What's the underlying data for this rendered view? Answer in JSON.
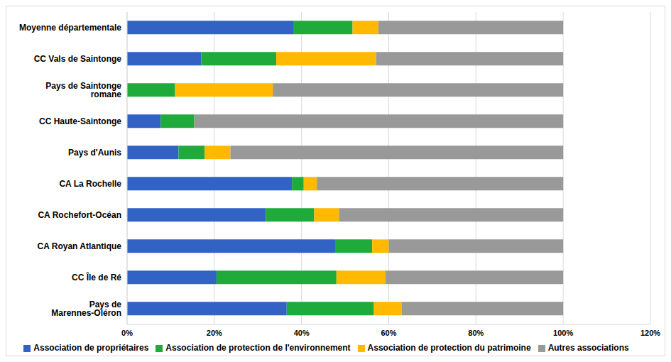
{
  "chart_data": {
    "type": "bar",
    "orientation": "horizontal",
    "stacked": true,
    "grid": true,
    "legend": "bottom",
    "categories": [
      "Moyenne départementale",
      "CC Vals de Saintonge",
      "Pays de Saintonge romane",
      "CC Haute-Saintonge",
      "Pays d'Aunis",
      "CA La Rochelle",
      "CA Rochefort-Océan",
      "CA Royan Atlantique",
      "CC Île de Ré",
      "Pays de Marennes-Oléron"
    ],
    "series": [
      {
        "name": "Association de propriétaires",
        "color": "#3162c4",
        "values": [
          38.1,
          17.0,
          0,
          7.7,
          11.8,
          37.8,
          31.8,
          47.7,
          20.5,
          36.6
        ]
      },
      {
        "name": "Association de protection de l'environnement",
        "color": "#1fab3c",
        "values": [
          13.6,
          17.2,
          11.0,
          7.7,
          6.0,
          2.7,
          11.1,
          8.5,
          27.5,
          20.0
        ]
      },
      {
        "name": "Association de protection du patrimoine",
        "color": "#ffb900",
        "values": [
          5.9,
          22.9,
          22.4,
          0,
          5.9,
          3.0,
          5.7,
          3.8,
          11.2,
          6.4
        ]
      },
      {
        "name": "Autres associations",
        "color": "#999999",
        "values": [
          42.4,
          42.9,
          66.6,
          84.6,
          76.3,
          56.5,
          51.4,
          40.0,
          40.8,
          37.0
        ]
      }
    ],
    "xlim": [
      0,
      120
    ],
    "xticks": [
      {
        "value": 0,
        "label": "0%"
      },
      {
        "value": 20,
        "label": "20%"
      },
      {
        "value": 40,
        "label": "40%"
      },
      {
        "value": 60,
        "label": "60%"
      },
      {
        "value": 80,
        "label": "80%"
      },
      {
        "value": 100,
        "label": "100%"
      },
      {
        "value": 120,
        "label": "120%"
      }
    ]
  }
}
